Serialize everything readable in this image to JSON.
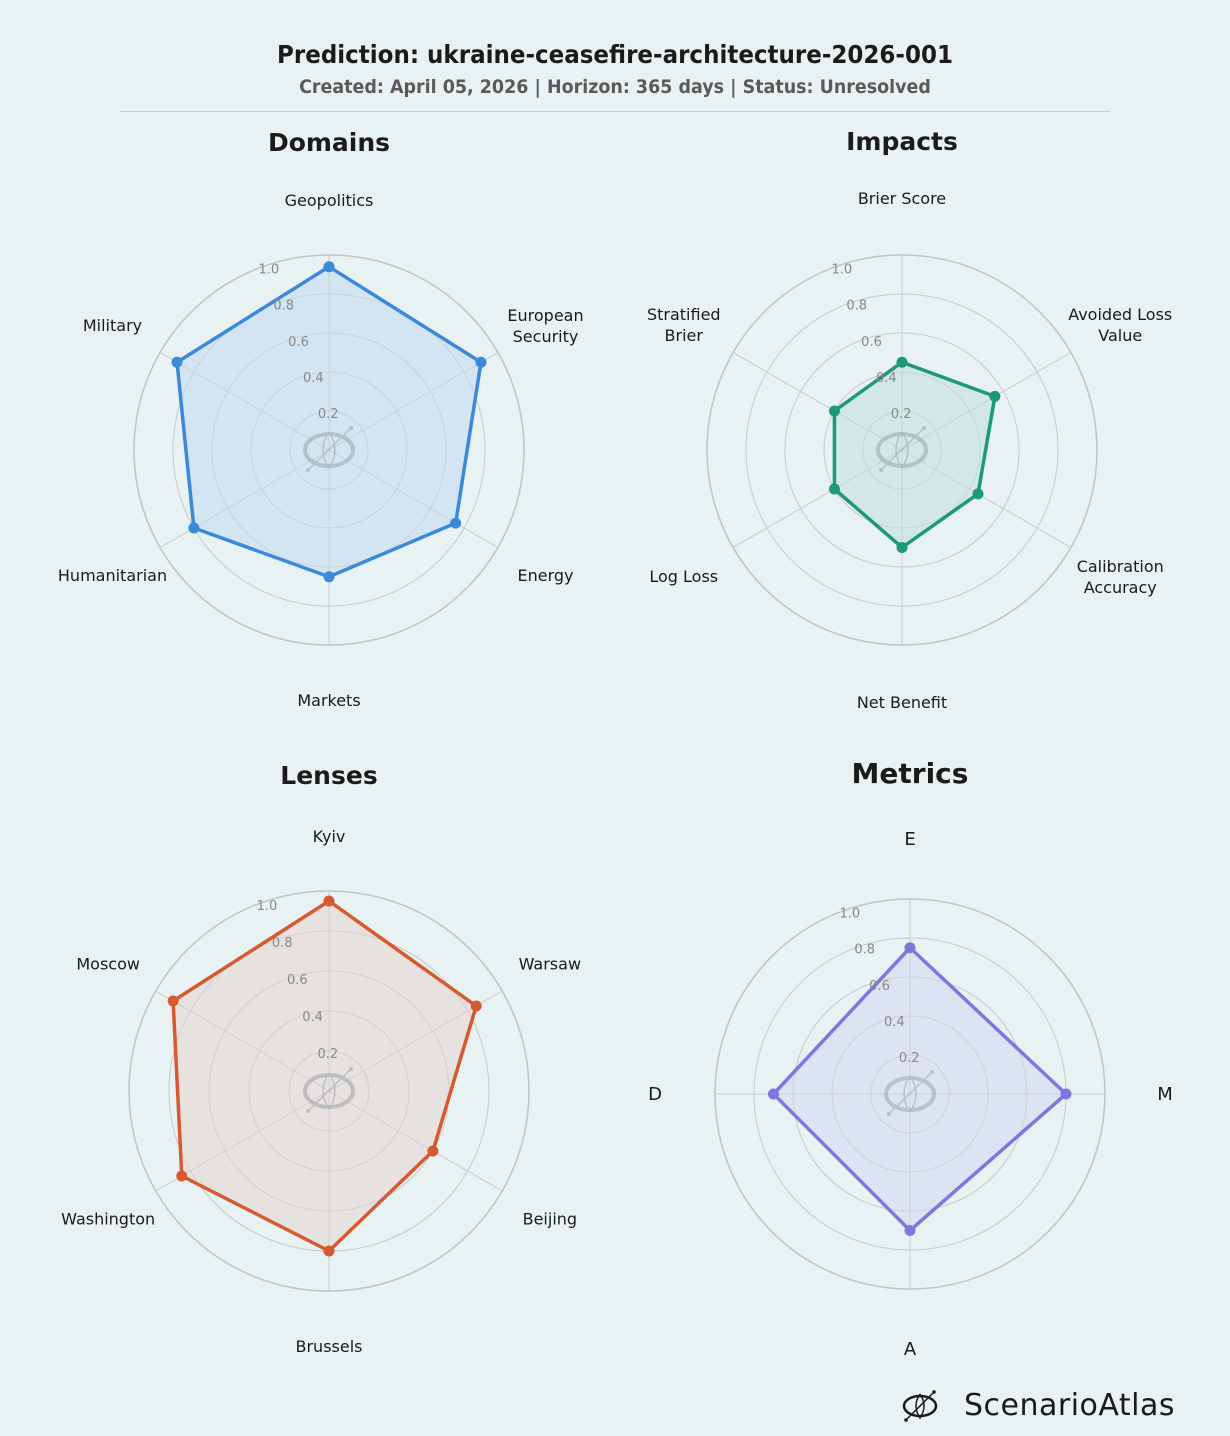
{
  "header": {
    "title": "Prediction: ukraine-ceasefire-architecture-2026-001",
    "subtitle": "Created: April 05, 2026  |  Horizon: 365 days  |  Status: Unresolved"
  },
  "brand": {
    "name": "ScenarioAtlas",
    "icon": "scenarioatlas-logo-icon"
  },
  "chart_data": [
    {
      "type": "radar",
      "title": "Domains",
      "categories": [
        "Geopolitics",
        "European Security",
        "Energy",
        "Markets",
        "Humanitarian",
        "Military"
      ],
      "values": [
        0.94,
        0.9,
        0.75,
        0.65,
        0.8,
        0.9
      ],
      "rticks": [
        "0.2",
        "0.4",
        "0.6",
        "0.8",
        "1.0"
      ],
      "rlim": [
        0,
        1.0
      ],
      "color": "#3a8ad9",
      "fill": "#cfe3f1"
    },
    {
      "type": "radar",
      "title": "Impacts",
      "categories": [
        "Brier Score",
        "Avoided Loss Value",
        "Calibration Accuracy",
        "Net Benefit",
        "Log Loss",
        "Stratified Brier"
      ],
      "values": [
        0.45,
        0.55,
        0.45,
        0.5,
        0.4,
        0.4
      ],
      "rticks": [
        "0.2",
        "0.4",
        "0.6",
        "0.8",
        "1.0"
      ],
      "rlim": [
        0,
        1.0
      ],
      "color": "#1d9a72",
      "fill": "#cde6e2"
    },
    {
      "type": "radar",
      "title": "Lenses",
      "categories": [
        "Kyiv",
        "Warsaw",
        "Beijing",
        "Brussels",
        "Washington",
        "Moscow"
      ],
      "values": [
        0.95,
        0.85,
        0.6,
        0.8,
        0.85,
        0.9
      ],
      "rticks": [
        "0.2",
        "0.4",
        "0.6",
        "0.8",
        "1.0"
      ],
      "rlim": [
        0,
        1.0
      ],
      "color": "#d65a30",
      "fill": "#e6deda"
    },
    {
      "type": "radar",
      "title": "Metrics",
      "categories": [
        "E",
        "M",
        "A",
        "D"
      ],
      "values": [
        0.75,
        0.8,
        0.7,
        0.7
      ],
      "rticks": [
        "0.2",
        "0.4",
        "0.6",
        "0.8",
        "1.0"
      ],
      "rlim": [
        0,
        1.0
      ],
      "color": "#7f77de",
      "fill": "#dbe1f1"
    }
  ]
}
